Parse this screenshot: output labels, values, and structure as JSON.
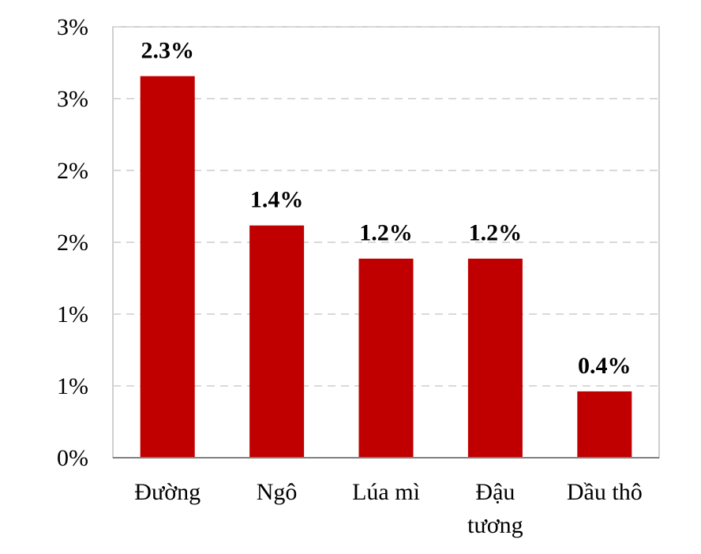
{
  "chart_data": {
    "type": "bar",
    "categories": [
      [
        "Đường"
      ],
      [
        "Ngô"
      ],
      [
        "Lúa mì"
      ],
      [
        "Đậu",
        "tương"
      ],
      [
        "Dầu thô"
      ]
    ],
    "values": [
      2.3,
      1.4,
      1.2,
      1.2,
      0.4
    ],
    "data_labels": [
      "2.3%",
      "1.4%",
      "1.2%",
      "1.2%",
      "0.4%"
    ],
    "y_tick_labels": [
      "0%",
      "1%",
      "1%",
      "2%",
      "2%",
      "3%",
      "3%"
    ],
    "ylim": [
      0,
      3
    ],
    "y_tick_step": 0.5,
    "grid": true,
    "title": "",
    "xlabel": "",
    "ylabel": "",
    "colors": {
      "bar": "#c00000",
      "grid": "#d9d9d9",
      "axis": "#808080",
      "frame": "#bfbfbf"
    }
  }
}
